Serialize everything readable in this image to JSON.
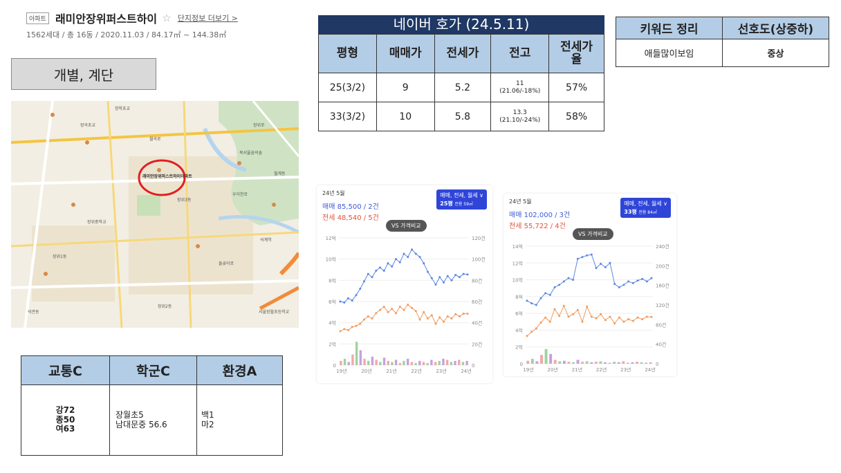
{
  "header": {
    "tag": "아파트",
    "name": "래미안장위퍼스트하이",
    "star": "☆",
    "more_link": "단지정보 더보기 >",
    "info": "1562세대 / 총 16동 / 2020.11.03 / 84.17㎡ ~ 144.38㎡"
  },
  "type_box": "개별, 계단",
  "map": {
    "marker_label": "래미안장위퍼스트하이아파트",
    "labels": [
      "창학초교",
      "장위로",
      "돌곶이로",
      "장위1동",
      "장위3동",
      "장위2동",
      "석관동",
      "월곡로",
      "서울장월초등학교",
      "장곡초교",
      "북서울꿈의숲",
      "장위중학교",
      "우이천로",
      "석계역",
      "월계동"
    ]
  },
  "hoga": {
    "title": "네이버 호가 (24.5.11)",
    "headers": [
      "평형",
      "매매가",
      "전세가",
      "전고",
      "전세가\n율"
    ],
    "rows": [
      {
        "type": "25(3/2)",
        "sale": "9",
        "rent": "5.2",
        "high": "11",
        "high_note": "(21.06/-18%)",
        "ratio": "57%"
      },
      {
        "type": "33(3/2)",
        "sale": "10",
        "rent": "5.8",
        "high": "13.3",
        "high_note": "(21.10/-24%)",
        "ratio": "58%"
      }
    ]
  },
  "keyword": {
    "headers": [
      "키워드 정리",
      "선호도(상중하)"
    ],
    "row": {
      "keyword": "애들많이보임",
      "preference": "중상"
    }
  },
  "grade": {
    "headers": [
      "교통C",
      "학군C",
      "환경A"
    ],
    "cells": [
      "강72\n종50\n여63",
      "장월초5\n남대문중 56.6",
      "백1\n마2"
    ]
  },
  "charts": [
    {
      "month": "24년 5월",
      "sale": "매매 85,500 / 2건",
      "rent": "전세 48,540 / 5건",
      "badge_line1": "매매, 전세, 월세 ∨",
      "badge_line2": "25평",
      "badge_small": "전용 59㎡",
      "vs": "VS 가격비교",
      "colors": {
        "sale": "#5b86e5",
        "rent": "#f09a5d",
        "bar_sale": "#f2a8a8",
        "bar_rent": "#9fd39f",
        "bar_month": "#c7a0e0"
      }
    },
    {
      "month": "24년 5월",
      "sale": "매매 102,000 / 3건",
      "rent": "전세 55,722 / 4건",
      "badge_line1": "매매, 전세, 월세 ∨",
      "badge_line2": "33평",
      "badge_small": "전용 84㎡",
      "vs": "VS 가격비교",
      "colors": {
        "sale": "#5b86e5",
        "rent": "#f09a5d",
        "bar_sale": "#f2a8a8",
        "bar_rent": "#9fd39f",
        "bar_month": "#c7a0e0"
      }
    }
  ],
  "chart_data": [
    {
      "type": "line",
      "x_ticks": [
        "19년",
        "20년",
        "21년",
        "22년",
        "23년",
        "24년"
      ],
      "y_left_ticks": [
        "0",
        "2억",
        "4억",
        "6억",
        "8억",
        "10억",
        "12억"
      ],
      "y_right_ticks": [
        "0",
        "20건",
        "40건",
        "60건",
        "80건",
        "100건",
        "120건"
      ],
      "y_left_range": [
        0,
        12
      ],
      "y_right_range": [
        0,
        120
      ],
      "series": [
        {
          "name": "매매",
          "values": [
            6.0,
            5.9,
            6.3,
            6.1,
            6.6,
            7.2,
            7.9,
            8.6,
            8.3,
            8.9,
            9.2,
            8.9,
            9.6,
            9.3,
            10.0,
            9.7,
            10.5,
            10.2,
            10.9,
            10.5,
            10.2,
            9.6,
            8.8,
            8.2,
            7.6,
            8.3,
            7.8,
            8.4,
            8.0,
            8.5,
            8.3,
            8.6,
            8.55
          ]
        },
        {
          "name": "전세",
          "values": [
            3.2,
            3.4,
            3.3,
            3.6,
            3.7,
            3.9,
            4.3,
            4.6,
            4.4,
            4.9,
            5.2,
            5.5,
            5.0,
            5.3,
            4.9,
            5.5,
            5.2,
            5.7,
            5.4,
            5.1,
            4.3,
            5.0,
            4.4,
            4.7,
            3.9,
            4.5,
            4.1,
            4.6,
            4.4,
            4.8,
            4.6,
            4.85,
            4.85
          ]
        }
      ],
      "volume": {
        "name": "거래량",
        "values": [
          4,
          6,
          3,
          10,
          22,
          14,
          6,
          4,
          8,
          5,
          3,
          7,
          4,
          3,
          5,
          2,
          4,
          6,
          3,
          2,
          4,
          3,
          2,
          5,
          3,
          4,
          6,
          5,
          3,
          4,
          5,
          3,
          4
        ]
      }
    },
    {
      "type": "line",
      "x_ticks": [
        "19년",
        "20년",
        "21년",
        "22년",
        "23년",
        "24년"
      ],
      "y_left_ticks": [
        "0",
        "2억",
        "4억",
        "6억",
        "8억",
        "10억",
        "12억",
        "14억"
      ],
      "y_right_ticks": [
        "0",
        "40건",
        "80건",
        "120건",
        "160건",
        "200건",
        "240건"
      ],
      "y_left_range": [
        0,
        14
      ],
      "y_right_range": [
        0,
        240
      ],
      "series": [
        {
          "name": "매매",
          "values": [
            7.5,
            7.2,
            7.0,
            7.8,
            8.4,
            8.2,
            9.1,
            9.4,
            9.8,
            10.2,
            10.0,
            12.5,
            12.7,
            12.9,
            13.0,
            11.4,
            11.9,
            11.5,
            12.0,
            9.5,
            9.1,
            9.4,
            9.8,
            9.6,
            9.9,
            10.1,
            9.8,
            10.2
          ]
        },
        {
          "name": "전세",
          "values": [
            3.3,
            3.8,
            4.2,
            4.9,
            5.5,
            5.0,
            6.5,
            5.7,
            6.9,
            5.6,
            5.9,
            6.4,
            5.0,
            6.8,
            5.6,
            5.4,
            5.9,
            5.2,
            5.6,
            4.8,
            5.5,
            5.0,
            5.3,
            5.1,
            5.5,
            5.3,
            5.6,
            5.57
          ]
        }
      ],
      "volume": {
        "name": "거래량",
        "values": [
          6,
          10,
          5,
          18,
          30,
          20,
          8,
          5,
          6,
          4,
          3,
          8,
          4,
          5,
          3,
          4,
          5,
          3,
          2,
          4,
          3,
          5,
          2,
          3,
          4,
          3,
          2,
          3
        ]
      }
    }
  ]
}
